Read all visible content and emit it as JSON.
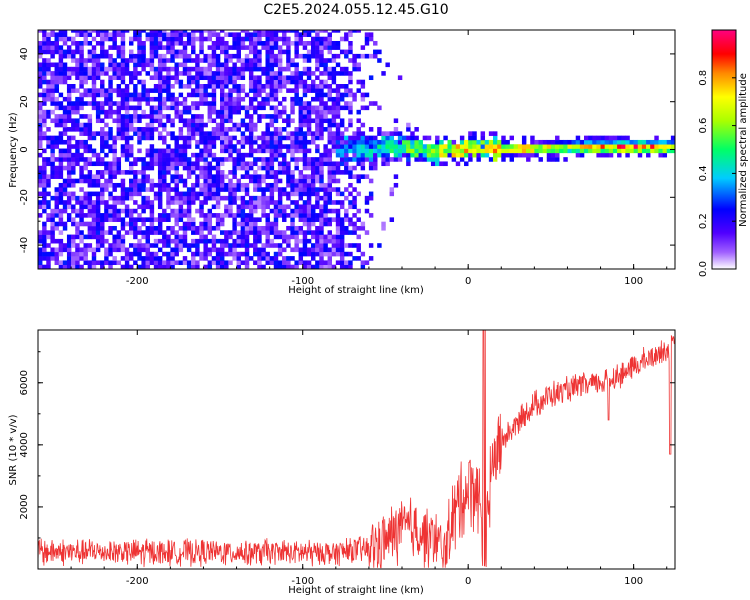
{
  "title": "C2E5.2024.055.12.45.G10",
  "chart_data": [
    {
      "type": "heatmap",
      "name": "spectrogram",
      "xlabel": "Height of straight line (km)",
      "ylabel": "Frequency (Hz)",
      "xlim": [
        -260,
        125
      ],
      "ylim": [
        -50,
        50
      ],
      "x_ticks": [
        "-200",
        "-100",
        "0",
        "100"
      ],
      "y_ticks": [
        "-40",
        "-20",
        "0",
        "20",
        "40"
      ],
      "colorbar": {
        "label": "Normalized spectral amplitude",
        "range": [
          0,
          1
        ],
        "ticks": [
          "0.0",
          "0.2",
          "0.4",
          "0.6",
          "0.8"
        ],
        "colors": [
          "#ffffff",
          "#7a00ff",
          "#0000ff",
          "#00ccff",
          "#00ff66",
          "#aaff00",
          "#ffff00",
          "#ff8800",
          "#ff0000",
          "#ff0080"
        ]
      },
      "regions": [
        {
          "x_range": [
            -260,
            -50
          ],
          "freq_range": [
            -50,
            50
          ],
          "amplitude": "0.1-0.25 (noise)"
        },
        {
          "x_range": [
            -80,
            125
          ],
          "freq_center_hz": 0,
          "freq_halfwidth_hz": 4,
          "amplitude": "0.3-1.0 (signal)"
        }
      ],
      "signal_center": {
        "x": [
          -80,
          -40,
          -20,
          0,
          20,
          60,
          100,
          125
        ],
        "freq": [
          0,
          1,
          -1,
          1,
          0,
          1,
          1,
          1
        ],
        "amplitude": [
          0.35,
          0.55,
          0.7,
          0.8,
          0.85,
          0.7,
          0.95,
          0.8
        ]
      }
    },
    {
      "type": "line",
      "name": "snr",
      "xlabel": "Height of straight line (km)",
      "ylabel": "SNR (10 * v/v)",
      "xlim": [
        -260,
        125
      ],
      "ylim": [
        0,
        7700
      ],
      "x_ticks": [
        "-200",
        "-100",
        "0",
        "100"
      ],
      "y_ticks": [
        "2000",
        "4000",
        "6000"
      ],
      "color": "#ee3333",
      "series": [
        {
          "x": [
            -260,
            -200,
            -150,
            -100,
            -80,
            -60,
            -50,
            -40,
            -30,
            -20,
            -15,
            -10,
            -5,
            0,
            5,
            10,
            15,
            20,
            30,
            40,
            50,
            60,
            70,
            80,
            90,
            100,
            110,
            120,
            125
          ],
          "y": [
            550,
            550,
            540,
            530,
            520,
            650,
            900,
            1350,
            1200,
            900,
            500,
            1500,
            2200,
            2600,
            2700,
            900,
            3500,
            4100,
            4700,
            5300,
            5600,
            5750,
            5900,
            6000,
            6200,
            6500,
            6800,
            7100,
            7200
          ]
        }
      ]
    }
  ]
}
